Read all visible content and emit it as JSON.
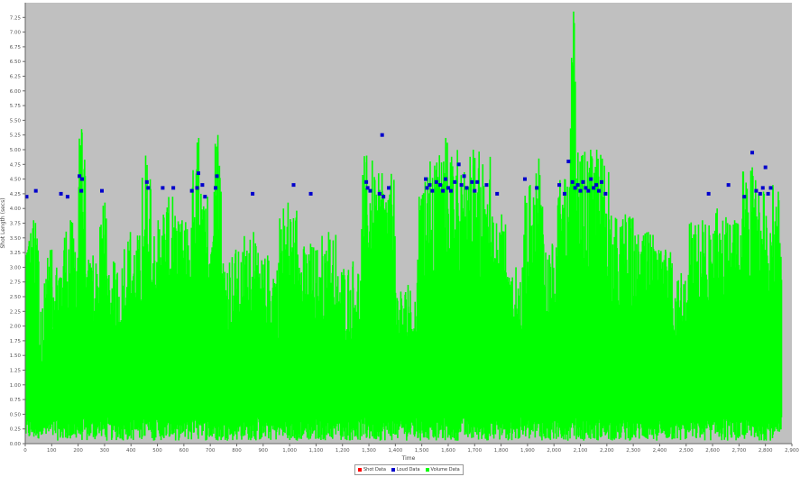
{
  "chart_data": {
    "type": "scatter",
    "title": "",
    "xlabel": "Time",
    "ylabel": "Shot Length (secs)",
    "xlim": [
      0,
      2900
    ],
    "ylim": [
      0,
      7.5
    ],
    "x_ticks": [
      0,
      100,
      200,
      300,
      400,
      500,
      600,
      700,
      800,
      900,
      1000,
      1100,
      1200,
      1300,
      1400,
      1500,
      1600,
      1700,
      1800,
      1900,
      2000,
      2100,
      2200,
      2300,
      2400,
      2500,
      2600,
      2700,
      2800,
      2900
    ],
    "x_tick_labels": [
      "0",
      "100",
      "200",
      "300",
      "400",
      "500",
      "600",
      "700",
      "800",
      "900",
      "1,000",
      "1,100",
      "1,200",
      "1,300",
      "1,400",
      "1,500",
      "1,600",
      "1,700",
      "1,800",
      "1,900",
      "2,000",
      "2,100",
      "2,200",
      "2,300",
      "2,400",
      "2,500",
      "2,600",
      "2,700",
      "2,800",
      "2,900"
    ],
    "y_ticks": [
      0,
      0.25,
      0.5,
      0.75,
      1,
      1.25,
      1.5,
      1.75,
      2,
      2.25,
      2.5,
      2.75,
      3,
      3.25,
      3.5,
      3.75,
      4,
      4.25,
      4.5,
      4.75,
      5,
      5.25,
      5.5,
      5.75,
      6,
      6.25,
      6.5,
      6.75,
      7,
      7.25
    ],
    "y_tick_labels": [
      "0.00",
      "0.25",
      "0.50",
      "0.75",
      "1.00",
      "1.25",
      "1.50",
      "1.75",
      "2.00",
      "2.25",
      "2.50",
      "2.75",
      "3.00",
      "3.25",
      "3.50",
      "3.75",
      "4.00",
      "4.25",
      "4.50",
      "4.75",
      "5.00",
      "5.25",
      "5.50",
      "5.75",
      "6.00",
      "6.25",
      "6.50",
      "6.75",
      "7.00",
      "7.25"
    ],
    "grid": false,
    "legend_placement": "bottom-center",
    "background_color": "#c0c0c0",
    "series": [
      {
        "name": "Shot Data",
        "color": "#ff0000",
        "points": []
      },
      {
        "name": "Loud Data",
        "color": "#0000cc",
        "points": [
          [
            5,
            4.2
          ],
          [
            40,
            4.3
          ],
          [
            135,
            4.25
          ],
          [
            160,
            4.2
          ],
          [
            205,
            4.55
          ],
          [
            215,
            4.5
          ],
          [
            212,
            4.3
          ],
          [
            290,
            4.3
          ],
          [
            460,
            4.45
          ],
          [
            465,
            4.35
          ],
          [
            520,
            4.35
          ],
          [
            560,
            4.35
          ],
          [
            630,
            4.3
          ],
          [
            650,
            4.35
          ],
          [
            655,
            4.6
          ],
          [
            670,
            4.4
          ],
          [
            680,
            4.2
          ],
          [
            720,
            4.35
          ],
          [
            725,
            4.55
          ],
          [
            860,
            4.25
          ],
          [
            1015,
            4.4
          ],
          [
            1080,
            4.25
          ],
          [
            1290,
            4.45
          ],
          [
            1295,
            4.35
          ],
          [
            1305,
            4.3
          ],
          [
            1340,
            4.25
          ],
          [
            1350,
            5.25
          ],
          [
            1355,
            4.2
          ],
          [
            1375,
            4.35
          ],
          [
            1515,
            4.5
          ],
          [
            1520,
            4.35
          ],
          [
            1530,
            4.4
          ],
          [
            1540,
            4.3
          ],
          [
            1555,
            4.45
          ],
          [
            1570,
            4.4
          ],
          [
            1580,
            4.3
          ],
          [
            1590,
            4.5
          ],
          [
            1600,
            4.35
          ],
          [
            1610,
            4.3
          ],
          [
            1625,
            4.45
          ],
          [
            1640,
            4.75
          ],
          [
            1650,
            4.4
          ],
          [
            1660,
            4.55
          ],
          [
            1670,
            4.35
          ],
          [
            1690,
            4.45
          ],
          [
            1700,
            4.3
          ],
          [
            1710,
            4.45
          ],
          [
            1745,
            4.4
          ],
          [
            1785,
            4.25
          ],
          [
            1890,
            4.5
          ],
          [
            1935,
            4.35
          ],
          [
            2020,
            4.4
          ],
          [
            2040,
            4.25
          ],
          [
            2055,
            4.8
          ],
          [
            2070,
            4.45
          ],
          [
            2080,
            4.35
          ],
          [
            2090,
            4.4
          ],
          [
            2100,
            4.3
          ],
          [
            2110,
            4.45
          ],
          [
            2120,
            4.35
          ],
          [
            2130,
            4.3
          ],
          [
            2140,
            4.5
          ],
          [
            2150,
            4.35
          ],
          [
            2160,
            4.4
          ],
          [
            2170,
            4.3
          ],
          [
            2180,
            4.45
          ],
          [
            2195,
            4.25
          ],
          [
            2585,
            4.25
          ],
          [
            2660,
            4.4
          ],
          [
            2720,
            4.2
          ],
          [
            2750,
            4.95
          ],
          [
            2765,
            4.3
          ],
          [
            2780,
            4.25
          ],
          [
            2790,
            4.35
          ],
          [
            2800,
            4.7
          ],
          [
            2810,
            4.25
          ],
          [
            2820,
            4.35
          ]
        ]
      },
      {
        "name": "Volume Data",
        "color": "#00ff00",
        "segments": [
          {
            "x": [
              0,
              50
            ],
            "max": 3.8
          },
          {
            "x": [
              50,
              70
            ],
            "max": 2.3
          },
          {
            "x": [
              70,
              140
            ],
            "max": 3.3
          },
          {
            "x": [
              140,
              200
            ],
            "max": 3.8
          },
          {
            "x": [
              200,
              225
            ],
            "max": 5.35
          },
          {
            "x": [
              225,
              280
            ],
            "max": 3.2
          },
          {
            "x": [
              280,
              310
            ],
            "max": 4.1
          },
          {
            "x": [
              310,
              370
            ],
            "max": 3.1
          },
          {
            "x": [
              370,
              440
            ],
            "max": 3.6
          },
          {
            "x": [
              440,
              475
            ],
            "max": 4.9
          },
          {
            "x": [
              475,
              520
            ],
            "max": 3.8
          },
          {
            "x": [
              520,
              570
            ],
            "max": 4.2
          },
          {
            "x": [
              570,
              630
            ],
            "max": 3.8
          },
          {
            "x": [
              630,
              670
            ],
            "max": 5.2
          },
          {
            "x": [
              670,
              710
            ],
            "max": 4.2
          },
          {
            "x": [
              710,
              740
            ],
            "max": 5.25
          },
          {
            "x": [
              740,
              820
            ],
            "max": 3.3
          },
          {
            "x": [
              820,
              880
            ],
            "max": 3.6
          },
          {
            "x": [
              880,
              960
            ],
            "max": 3.2
          },
          {
            "x": [
              960,
              1030
            ],
            "max": 4.1
          },
          {
            "x": [
              1030,
              1100
            ],
            "max": 3.4
          },
          {
            "x": [
              1100,
              1180
            ],
            "max": 3.6
          },
          {
            "x": [
              1180,
              1270
            ],
            "max": 3.1
          },
          {
            "x": [
              1270,
              1320
            ],
            "max": 4.9
          },
          {
            "x": [
              1320,
              1400
            ],
            "max": 4.6
          },
          {
            "x": [
              1400,
              1480
            ],
            "max": 2.7
          },
          {
            "x": [
              1480,
              1500
            ],
            "max": 4.2
          },
          {
            "x": [
              1500,
              1550
            ],
            "max": 4.8
          },
          {
            "x": [
              1550,
              1650
            ],
            "max": 5.2
          },
          {
            "x": [
              1650,
              1760
            ],
            "max": 5.0
          },
          {
            "x": [
              1760,
              1820
            ],
            "max": 3.9
          },
          {
            "x": [
              1820,
              1880
            ],
            "max": 3.0
          },
          {
            "x": [
              1880,
              1930
            ],
            "max": 4.4
          },
          {
            "x": [
              1930,
              1960
            ],
            "max": 4.85
          },
          {
            "x": [
              1960,
              2010
            ],
            "max": 3.4
          },
          {
            "x": [
              2010,
              2060
            ],
            "max": 4.5
          },
          {
            "x": [
              2060,
              2080
            ],
            "max": 7.35
          },
          {
            "x": [
              2080,
              2210
            ],
            "max": 5.0
          },
          {
            "x": [
              2210,
              2300
            ],
            "max": 3.9
          },
          {
            "x": [
              2300,
              2380
            ],
            "max": 3.6
          },
          {
            "x": [
              2380,
              2450
            ],
            "max": 3.3
          },
          {
            "x": [
              2450,
              2510
            ],
            "max": 2.9
          },
          {
            "x": [
              2510,
              2590
            ],
            "max": 3.8
          },
          {
            "x": [
              2590,
              2650
            ],
            "max": 4.0
          },
          {
            "x": [
              2650,
              2710
            ],
            "max": 3.8
          },
          {
            "x": [
              2710,
              2790
            ],
            "max": 4.7
          },
          {
            "x": [
              2790,
              2860
            ],
            "max": 4.4
          }
        ]
      }
    ]
  }
}
